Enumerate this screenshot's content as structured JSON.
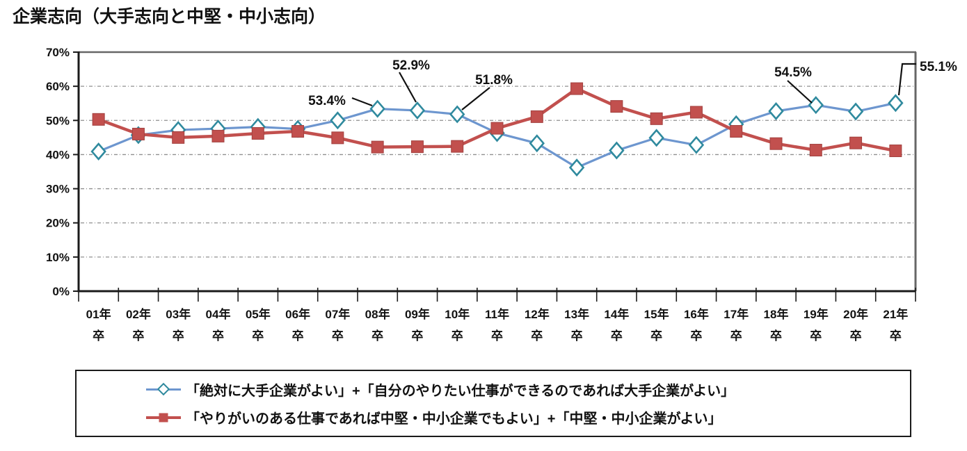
{
  "title": "企業志向（大手志向と中堅・中小志向）",
  "chart_data": {
    "type": "line",
    "title": "企業志向（大手志向と中堅・中小志向）",
    "categories": [
      "01年",
      "02年",
      "03年",
      "04年",
      "05年",
      "06年",
      "07年",
      "08年",
      "09年",
      "10年",
      "11年",
      "12年",
      "13年",
      "14年",
      "15年",
      "16年",
      "17年",
      "18年",
      "19年",
      "20年",
      "21年"
    ],
    "category_suffix": "卒",
    "y_axis": {
      "min": 0,
      "max": 70,
      "step": 10,
      "tick_labels": [
        "0%",
        "10%",
        "20%",
        "30%",
        "40%",
        "50%",
        "60%",
        "70%"
      ],
      "grid": true
    },
    "series": [
      {
        "name": "「絶対に大手企業がよい」+「自分のやりたい仕事ができるのであれば大手企業がよい」",
        "marker": "diamond",
        "line_color": "#6d96cf",
        "marker_color": "#2f8a9e",
        "values": [
          40.9,
          45.7,
          47.2,
          47.6,
          48.1,
          47.5,
          50.0,
          53.4,
          52.9,
          51.8,
          46.3,
          43.3,
          36.2,
          41.2,
          44.9,
          42.8,
          48.9,
          52.7,
          54.5,
          52.6,
          55.1
        ]
      },
      {
        "name": "「やりがいのある仕事であれば中堅・中小企業でもよい」+「中堅・中小企業がよい」",
        "marker": "square",
        "line_color": "#c2504e",
        "marker_color": "#c2504e",
        "values": [
          50.3,
          46.0,
          45.0,
          45.4,
          46.2,
          46.8,
          44.9,
          42.2,
          42.3,
          42.4,
          47.7,
          51.1,
          59.3,
          54.1,
          50.5,
          52.4,
          46.8,
          43.2,
          41.3,
          43.4,
          41.1
        ]
      }
    ],
    "annotations": [
      {
        "text": "53.4%",
        "series": 0,
        "index": 7
      },
      {
        "text": "52.9%",
        "series": 0,
        "index": 8
      },
      {
        "text": "51.8%",
        "series": 0,
        "index": 9
      },
      {
        "text": "54.5%",
        "series": 0,
        "index": 18
      },
      {
        "text": "55.1%",
        "series": 0,
        "index": 20
      }
    ],
    "legend_position": "bottom-box",
    "colors": {
      "grid": "#8f8f8f",
      "axis": "#1a1a1a",
      "frame": "#666666",
      "annotation_leader": "#111111"
    }
  }
}
